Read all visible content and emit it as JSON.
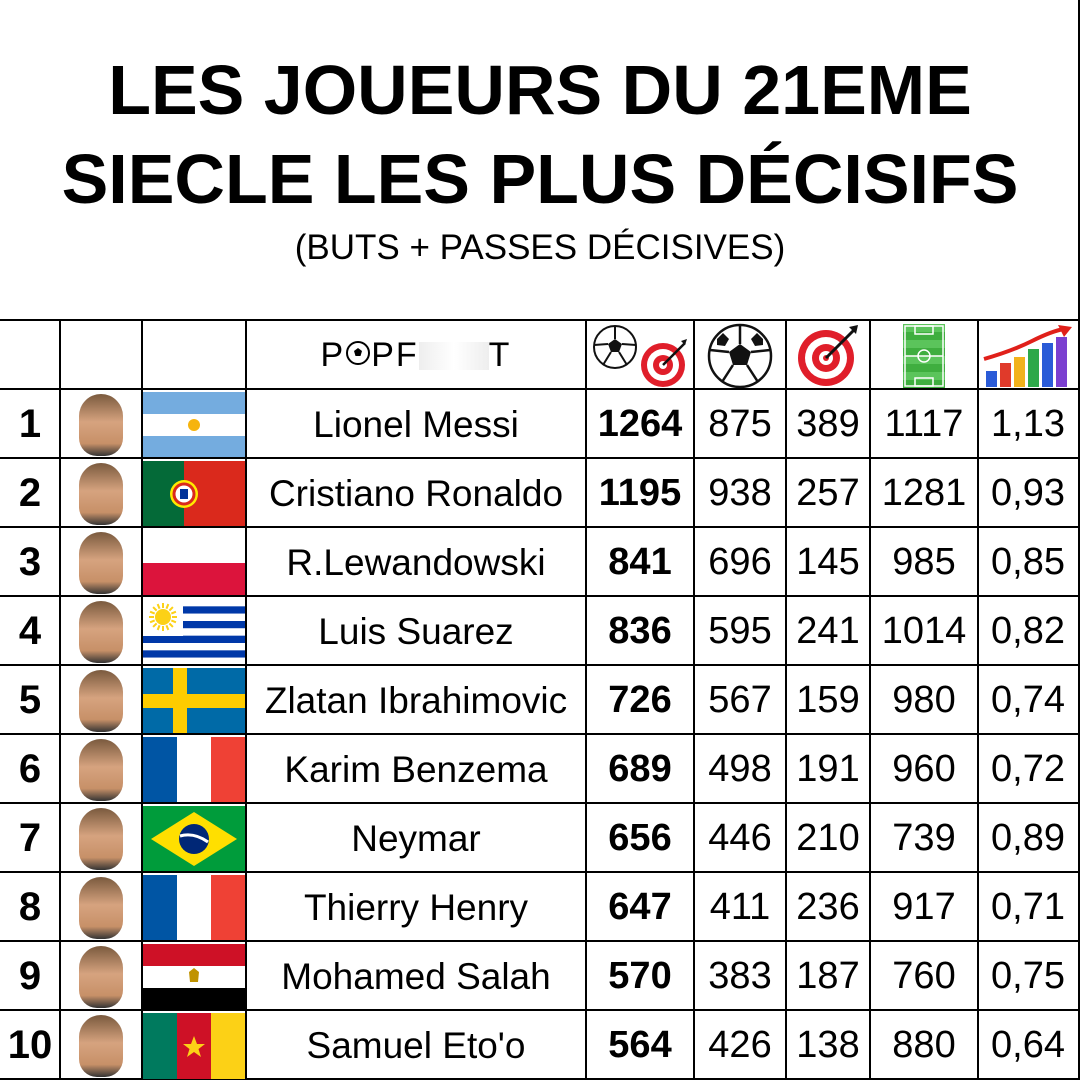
{
  "title_line1": "LES JOUEURS DU 21EME",
  "title_line2": "SIECLE LES PLUS DÉCISIFS",
  "subtitle": "(BUTS + PASSES DÉCISIVES)",
  "logo_text": {
    "pre": "P",
    "mid": "PF",
    "post": "T"
  },
  "header_icons": [
    "ball-and-target-icon",
    "soccer-ball-icon",
    "target-icon",
    "football-pitch-icon",
    "rising-bar-chart-icon"
  ],
  "players": [
    {
      "rank": "1",
      "name": "Lionel Messi",
      "flag": "argentina",
      "total": "1264",
      "goals": "875",
      "assists": "389",
      "matches": "1117",
      "ratio": "1,13"
    },
    {
      "rank": "2",
      "name": "Cristiano Ronaldo",
      "flag": "portugal",
      "total": "1195",
      "goals": "938",
      "assists": "257",
      "matches": "1281",
      "ratio": "0,93"
    },
    {
      "rank": "3",
      "name": "R.Lewandowski",
      "flag": "poland",
      "total": "841",
      "goals": "696",
      "assists": "145",
      "matches": "985",
      "ratio": "0,85"
    },
    {
      "rank": "4",
      "name": "Luis Suarez",
      "flag": "uruguay",
      "total": "836",
      "goals": "595",
      "assists": "241",
      "matches": "1014",
      "ratio": "0,82"
    },
    {
      "rank": "5",
      "name": "Zlatan Ibrahimovic",
      "flag": "sweden",
      "total": "726",
      "goals": "567",
      "assists": "159",
      "matches": "980",
      "ratio": "0,74"
    },
    {
      "rank": "6",
      "name": "Karim Benzema",
      "flag": "france",
      "total": "689",
      "goals": "498",
      "assists": "191",
      "matches": "960",
      "ratio": "0,72"
    },
    {
      "rank": "7",
      "name": "Neymar",
      "flag": "brazil",
      "total": "656",
      "goals": "446",
      "assists": "210",
      "matches": "739",
      "ratio": "0,89"
    },
    {
      "rank": "8",
      "name": "Thierry Henry",
      "flag": "france",
      "total": "647",
      "goals": "411",
      "assists": "236",
      "matches": "917",
      "ratio": "0,71"
    },
    {
      "rank": "9",
      "name": "Mohamed Salah",
      "flag": "egypt",
      "total": "570",
      "goals": "383",
      "assists": "187",
      "matches": "760",
      "ratio": "0,75"
    },
    {
      "rank": "10",
      "name": "Samuel Eto'o",
      "flag": "cameroon",
      "total": "564",
      "goals": "426",
      "assists": "138",
      "matches": "880",
      "ratio": "0,64"
    }
  ]
}
